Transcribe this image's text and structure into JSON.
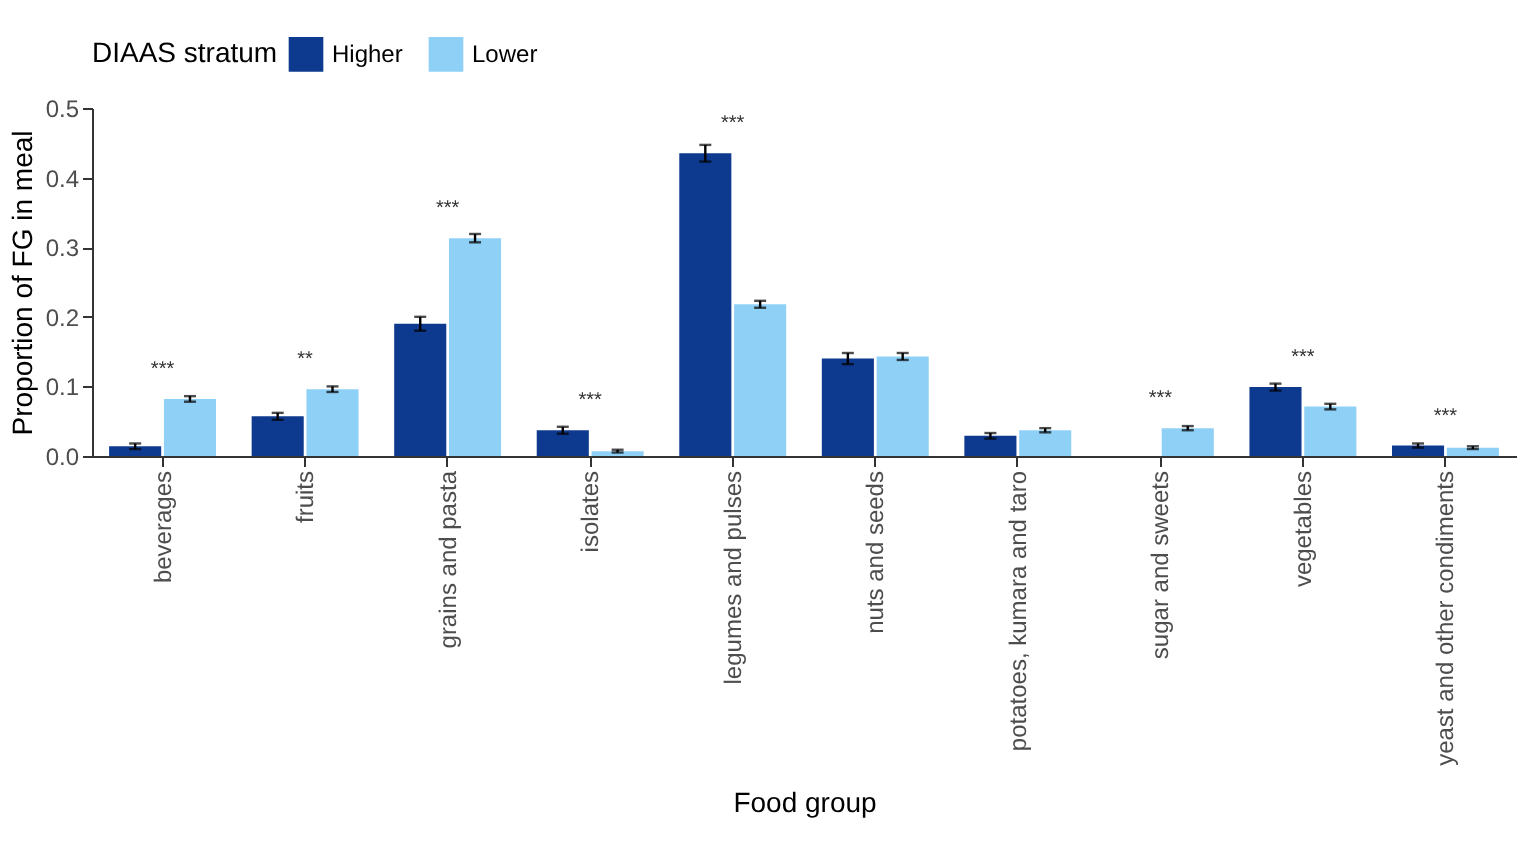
{
  "chart_data": {
    "type": "bar",
    "xlabel": "Food group",
    "ylabel": "Proportion of FG in meal",
    "legend_title": "DIAAS stratum",
    "legend": "top",
    "categories": [
      "beverages",
      "fruits",
      "grains and pasta",
      "isolates",
      "legumes and pulses",
      "nuts and seeds",
      "potatoes, kumara and taro",
      "sugar and sweets",
      "vegetables",
      "yeast and other condiments"
    ],
    "series": [
      {
        "name": "Higher",
        "color": "#0d3a8e",
        "values": [
          0.014,
          0.057,
          0.19,
          0.037,
          0.435,
          0.14,
          0.029,
          0,
          0.099,
          0.015
        ],
        "errors": [
          0.004,
          0.005,
          0.01,
          0.005,
          0.012,
          0.008,
          0.004,
          null,
          0.005,
          0.003
        ]
      },
      {
        "name": "Lower",
        "color": "#8fd0f7",
        "values": [
          0.082,
          0.096,
          0.313,
          0.007,
          0.218,
          0.143,
          0.037,
          0.04,
          0.071,
          0.012
        ],
        "errors": [
          0.004,
          0.004,
          0.006,
          0.002,
          0.005,
          0.005,
          0.003,
          0.003,
          0.004,
          0.002
        ]
      }
    ],
    "ylim": [
      0,
      0.5
    ],
    "yticks": [
      {
        "value": 0,
        "label": "0.0"
      },
      0.1,
      0.2,
      0.3,
      0.4,
      0.5
    ],
    "grid": false,
    "annotations": [
      {
        "text": "***",
        "x": "beverages",
        "y": 0.082
      },
      {
        "text": "**",
        "x": "fruits",
        "y": 0.096
      },
      {
        "text": "***",
        "x": "grains and pasta",
        "y": 0.313
      },
      {
        "text": "***",
        "x": "isolates",
        "y": 0.037
      },
      {
        "text": "***",
        "x": "legumes and pulses",
        "y": 0.435
      },
      {
        "text": "***",
        "x": "sugar and sweets",
        "y": 0.04
      },
      {
        "text": "***",
        "x": "vegetables",
        "y": 0.099
      },
      {
        "text": "***",
        "x": "yeast and other condiments",
        "y": 0.015
      }
    ]
  }
}
